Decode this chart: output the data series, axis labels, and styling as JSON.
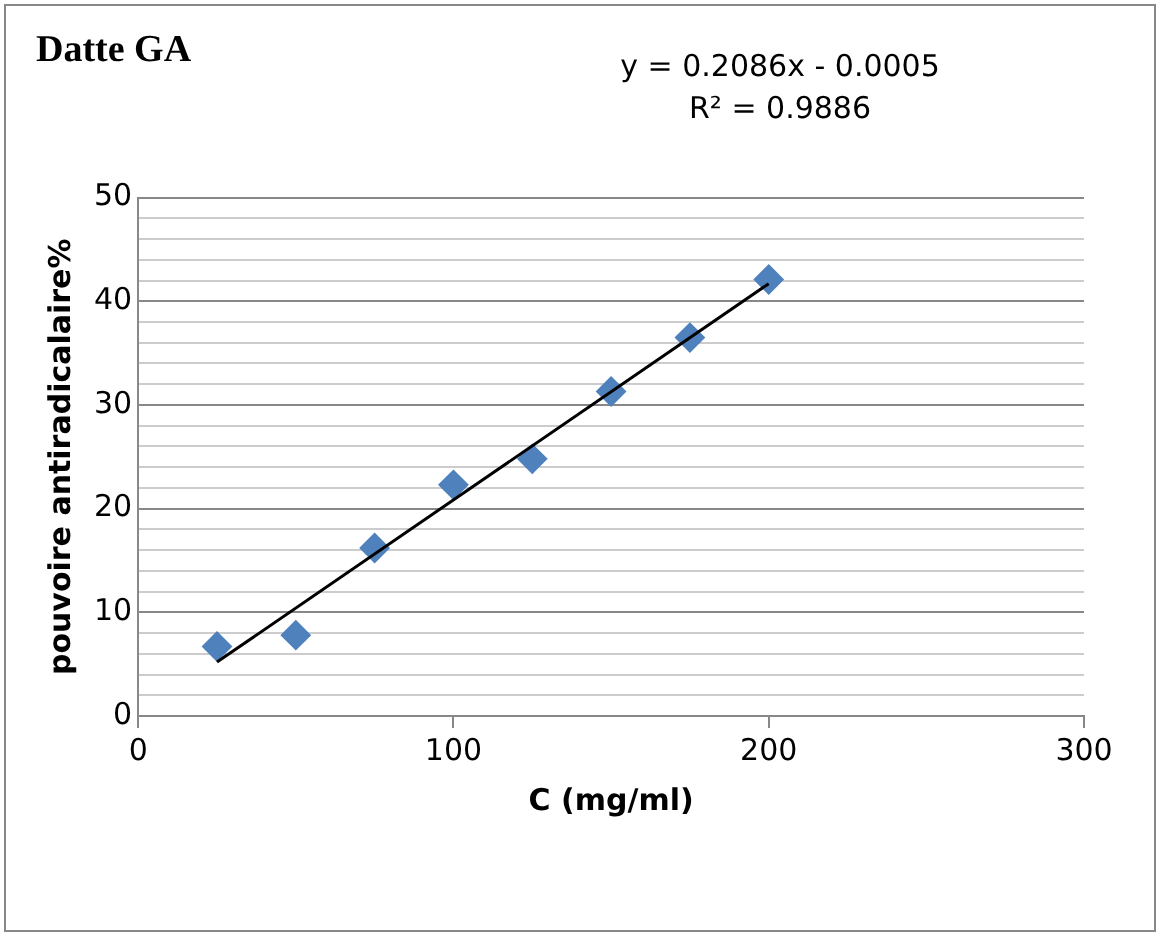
{
  "chart_data": {
    "type": "scatter",
    "title": "Datte GA",
    "xlabel": "C (mg/ml)",
    "ylabel": "pouvoire antiradicalaire%",
    "x": [
      25,
      50,
      75,
      100,
      125,
      150,
      175,
      200
    ],
    "series": [
      {
        "type": "scatter",
        "color": "#4f81bd",
        "marker": "diamond",
        "values": [
          6.7,
          7.8,
          16.2,
          22.3,
          24.8,
          31.3,
          36.5,
          42.1
        ]
      },
      {
        "type": "line",
        "color": "#000000",
        "x": [
          25,
          200
        ],
        "values": [
          5.2,
          41.7
        ],
        "marker": "none",
        "line_style": "solid"
      }
    ],
    "annotations": [
      "y = 0.2086x - 0.0005",
      "R² = 0.9886"
    ],
    "xlim": [
      0,
      300
    ],
    "xticks": [
      0,
      100,
      200,
      300
    ],
    "ylim": [
      0,
      50
    ],
    "yticks": [
      0,
      {
        "value": 2,
        "label": null
      },
      {
        "value": 4,
        "label": null
      },
      {
        "value": 6,
        "label": null
      },
      {
        "value": 8,
        "label": null
      },
      10,
      {
        "value": 12,
        "label": null
      },
      {
        "value": 14,
        "label": null
      },
      {
        "value": 16,
        "label": null
      },
      {
        "value": 18,
        "label": null
      },
      20,
      {
        "value": 22,
        "label": null
      },
      {
        "value": 24,
        "label": null
      },
      {
        "value": 26,
        "label": null
      },
      {
        "value": 28,
        "label": null
      },
      30,
      {
        "value": 32,
        "label": null
      },
      {
        "value": 34,
        "label": null
      },
      {
        "value": 36,
        "label": null
      },
      {
        "value": 38,
        "label": null
      },
      40,
      {
        "value": 42,
        "label": null
      },
      {
        "value": 44,
        "label": null
      },
      {
        "value": 46,
        "label": null
      },
      {
        "value": 48,
        "label": null
      },
      50
    ],
    "grid": "y",
    "legend": false
  }
}
